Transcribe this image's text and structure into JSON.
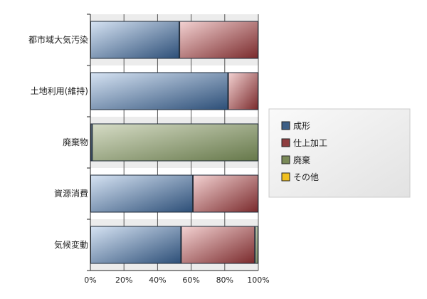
{
  "chart_data": {
    "type": "bar",
    "orientation": "horizontal",
    "stacked": "percent",
    "categories": [
      "都市域大気汚染",
      "土地利用(維持)",
      "廃棄物",
      "資源消費",
      "気候変動"
    ],
    "series": [
      {
        "name": "成形",
        "values": [
          53,
          82,
          1,
          61,
          54
        ],
        "color": "#3d5f86"
      },
      {
        "name": "仕上加工",
        "values": [
          47,
          18,
          0,
          39,
          44
        ],
        "color": "#8e3e40"
      },
      {
        "name": "廃棄",
        "values": [
          0,
          0,
          99,
          0,
          2
        ],
        "color": "#7a8a58"
      },
      {
        "name": "その他",
        "values": [
          0,
          0,
          0,
          0,
          0
        ],
        "color": "#f0c020"
      }
    ],
    "xlim": [
      0,
      100
    ],
    "x_ticks": [
      "0%",
      "20%",
      "40%",
      "60%",
      "80%",
      "100%"
    ],
    "grid": true,
    "legend_position": "right"
  }
}
